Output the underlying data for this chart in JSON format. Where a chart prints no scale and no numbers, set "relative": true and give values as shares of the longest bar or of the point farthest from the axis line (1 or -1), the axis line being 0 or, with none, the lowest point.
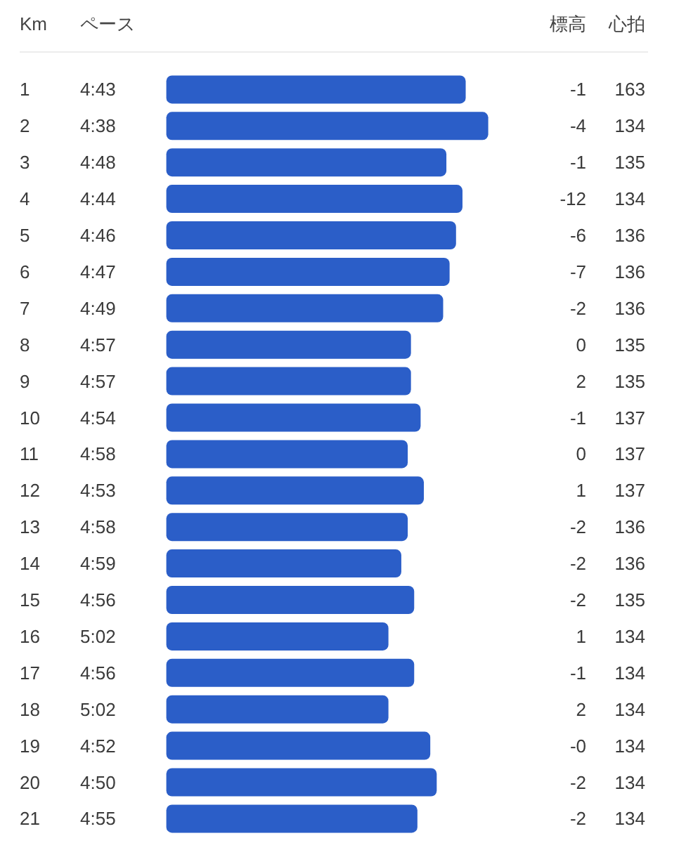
{
  "chart_data": {
    "type": "bar",
    "orientation": "horizontal",
    "relative": true,
    "ylabel": "Km",
    "categories": [
      "1",
      "2",
      "3",
      "4",
      "5",
      "6",
      "7",
      "8",
      "9",
      "10",
      "11",
      "12",
      "13",
      "14",
      "15",
      "16",
      "17",
      "18",
      "19",
      "20",
      "21"
    ],
    "values": [
      0.93,
      1,
      0.87,
      0.92,
      0.9,
      0.88,
      0.86,
      0.76,
      0.76,
      0.79,
      0.75,
      0.8,
      0.75,
      0.73,
      0.77,
      0.69,
      0.77,
      0.69,
      0.82,
      0.84,
      0.78
    ],
    "tick_labels": "y",
    "color": "#2b5ec8",
    "annotations": [
      "ペース",
      "標高",
      "心拍",
      "4:43",
      "-1",
      "163",
      "4:38",
      "-4",
      "134",
      "4:48",
      "-1",
      "135",
      "4:44",
      "-12",
      "134",
      "4:46",
      "-6",
      "136",
      "4:47",
      "-7",
      "136",
      "4:49",
      "-2",
      "136",
      "4:57",
      "0",
      "135",
      "4:57",
      "2",
      "135",
      "4:54",
      "-1",
      "137",
      "4:58",
      "0",
      "137",
      "4:53",
      "1",
      "137",
      "4:58",
      "-2",
      "136",
      "4:59",
      "-2",
      "136",
      "4:56",
      "-2",
      "135",
      "5:02",
      "1",
      "134",
      "4:56",
      "-1",
      "134",
      "5:02",
      "2",
      "134",
      "4:52",
      "-0",
      "134",
      "4:50",
      "-2",
      "134",
      "4:55",
      "-2",
      "134"
    ]
  }
}
